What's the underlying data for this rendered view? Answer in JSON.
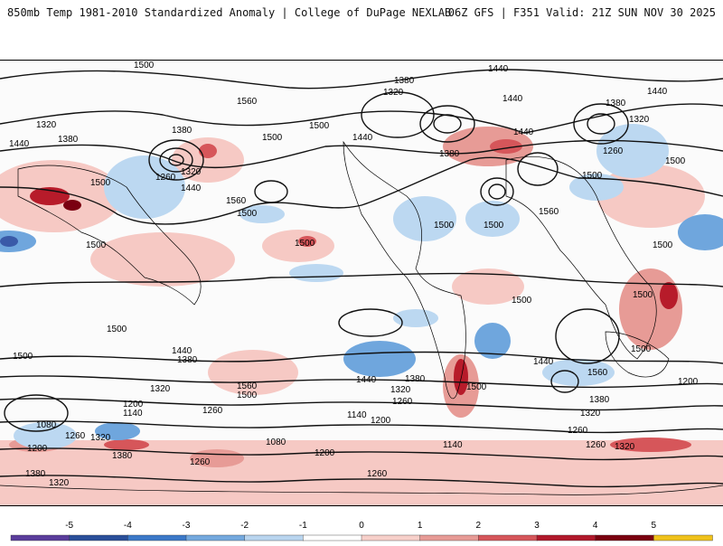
{
  "header": {
    "title_left": "850mb Temp 1981-2010 Standardized Anomaly | College of DuPage NEXLAB",
    "title_right": "06Z GFS | F351 Valid: 21Z SUN NOV 30 2025"
  },
  "colors": {
    "cold_strong": "#3a5aa8",
    "cold_moderate": "#6fa6dd",
    "cold_light": "#bcd8f1",
    "neutral": "#ffffff",
    "warm_light": "#f6c9c4",
    "warm_moderate": "#e47b7b",
    "warm_strong": "#b71b2a",
    "warm_extreme": "#7a0011",
    "contour": "#111111",
    "coastline": "#000000"
  },
  "contour_labels": [
    "1500",
    "1440",
    "1380",
    "1320",
    "1560",
    "1260",
    "1200",
    "1140",
    "1080"
  ],
  "colorbar": {
    "ticks": [
      "-5",
      "-4",
      "-3",
      "-2",
      "-1",
      "0",
      "1",
      "2",
      "3",
      "4",
      "5"
    ],
    "colors": [
      "#5a3d9c",
      "#2a4f9a",
      "#3b78c8",
      "#74a9de",
      "#b9d5ef",
      "#ffffff",
      "#f7d0ca",
      "#e79b96",
      "#d6565a",
      "#b1182b",
      "#7a0010",
      "#f0c21b"
    ]
  }
}
